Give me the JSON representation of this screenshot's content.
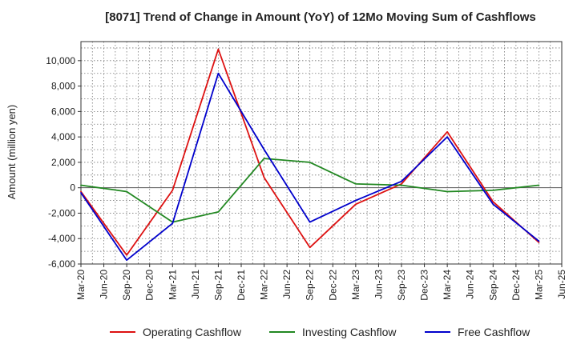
{
  "chart_data": {
    "type": "line",
    "title": "[8071]  Trend of Change in Amount (YoY) of 12Mo Moving Sum of Cashflows",
    "xlabel": "",
    "ylabel": "Amount (million yen)",
    "ylim": [
      -6000,
      11500
    ],
    "y_ticks": [
      -6000,
      -4000,
      -2000,
      0,
      2000,
      4000,
      6000,
      8000,
      10000
    ],
    "y_tick_labels": [
      "-6,000",
      "-4,000",
      "-2,000",
      "0",
      "2,000",
      "4,000",
      "6,000",
      "8,000",
      "10,000"
    ],
    "categories": [
      "Mar-20",
      "Jun-20",
      "Sep-20",
      "Dec-20",
      "Mar-21",
      "Jun-21",
      "Sep-21",
      "Dec-21",
      "Mar-22",
      "Jun-22",
      "Sep-22",
      "Dec-22",
      "Mar-23",
      "Jun-23",
      "Sep-23",
      "Dec-23",
      "Mar-24",
      "Jun-24",
      "Sep-24",
      "Dec-24",
      "Mar-25",
      "Jun-25"
    ],
    "grid": true,
    "legend_position": "bottom",
    "series": [
      {
        "name": "Operating Cashflow",
        "color": "#dd1111",
        "values": [
          -300,
          null,
          -5300,
          null,
          -200,
          null,
          10900,
          null,
          800,
          null,
          -4700,
          null,
          -1300,
          null,
          300,
          null,
          4400,
          null,
          -1100,
          null,
          -4300,
          null
        ]
      },
      {
        "name": "Investing Cashflow",
        "color": "#228822",
        "values": [
          200,
          null,
          -300,
          null,
          -2700,
          null,
          -1900,
          null,
          2300,
          null,
          2000,
          null,
          300,
          null,
          200,
          null,
          -300,
          null,
          -200,
          null,
          200,
          null
        ]
      },
      {
        "name": "Free Cashflow",
        "color": "#0000cc",
        "values": [
          -400,
          null,
          -5700,
          null,
          -2800,
          null,
          9000,
          null,
          3000,
          null,
          -2700,
          null,
          -1000,
          null,
          500,
          null,
          4000,
          null,
          -1300,
          null,
          -4200,
          null
        ]
      }
    ]
  }
}
